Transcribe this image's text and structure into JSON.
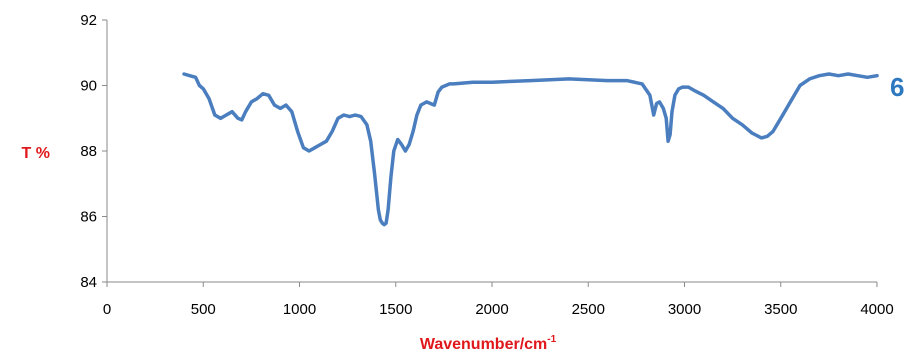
{
  "chart_data": {
    "type": "line",
    "xlabel": "Wavenumber/cm",
    "xlabel_superscript": "-1",
    "ylabel": "T %",
    "series_label": "6",
    "xlim": [
      0,
      4000
    ],
    "ylim": [
      84,
      92
    ],
    "xticks": [
      "0",
      "500",
      "1000",
      "1500",
      "2000",
      "2500",
      "3000",
      "3500",
      "4000"
    ],
    "yticks": [
      "84",
      "86",
      "88",
      "90",
      "92"
    ],
    "grid": false,
    "colors": {
      "line": "#4a7ebf",
      "axis_title": "#e0181b",
      "series_label": "#2e78c0",
      "axis": "#8a8a8a"
    },
    "series": [
      {
        "x": [
          400,
          430,
          460,
          480,
          500,
          530,
          560,
          590,
          620,
          650,
          680,
          700,
          720,
          750,
          780,
          810,
          840,
          870,
          900,
          930,
          960,
          990,
          1020,
          1050,
          1080,
          1110,
          1140,
          1170,
          1200,
          1230,
          1260,
          1290,
          1320,
          1350,
          1370,
          1390,
          1410,
          1420,
          1430,
          1440,
          1450,
          1460,
          1475,
          1490,
          1510,
          1530,
          1550,
          1570,
          1590,
          1610,
          1630,
          1660,
          1700,
          1720,
          1740,
          1760,
          1780,
          1800,
          1900,
          2000,
          2200,
          2400,
          2600,
          2700,
          2780,
          2820,
          2840,
          2855,
          2870,
          2890,
          2905,
          2915,
          2925,
          2935,
          2950,
          2970,
          2990,
          3020,
          3050,
          3100,
          3150,
          3200,
          3250,
          3300,
          3350,
          3400,
          3430,
          3460,
          3500,
          3550,
          3600,
          3650,
          3700,
          3750,
          3800,
          3850,
          3900,
          3950,
          4000
        ],
        "y": [
          90.35,
          90.3,
          90.25,
          90.0,
          89.9,
          89.6,
          89.1,
          89.0,
          89.1,
          89.2,
          89.0,
          88.95,
          89.2,
          89.5,
          89.6,
          89.75,
          89.7,
          89.4,
          89.3,
          89.4,
          89.2,
          88.6,
          88.1,
          88.0,
          88.1,
          88.2,
          88.3,
          88.6,
          89.0,
          89.1,
          89.05,
          89.1,
          89.05,
          88.8,
          88.3,
          87.3,
          86.2,
          85.9,
          85.8,
          85.75,
          85.8,
          86.2,
          87.2,
          88.0,
          88.35,
          88.2,
          88.0,
          88.2,
          88.6,
          89.1,
          89.4,
          89.5,
          89.4,
          89.8,
          89.95,
          90.0,
          90.05,
          90.05,
          90.1,
          90.1,
          90.15,
          90.2,
          90.15,
          90.15,
          90.05,
          89.7,
          89.1,
          89.45,
          89.5,
          89.3,
          89.0,
          88.3,
          88.5,
          89.2,
          89.7,
          89.9,
          89.95,
          89.95,
          89.85,
          89.7,
          89.5,
          89.3,
          89.0,
          88.8,
          88.55,
          88.4,
          88.45,
          88.6,
          89.0,
          89.5,
          90.0,
          90.2,
          90.3,
          90.35,
          90.3,
          90.35,
          90.3,
          90.25,
          90.3
        ]
      }
    ]
  }
}
